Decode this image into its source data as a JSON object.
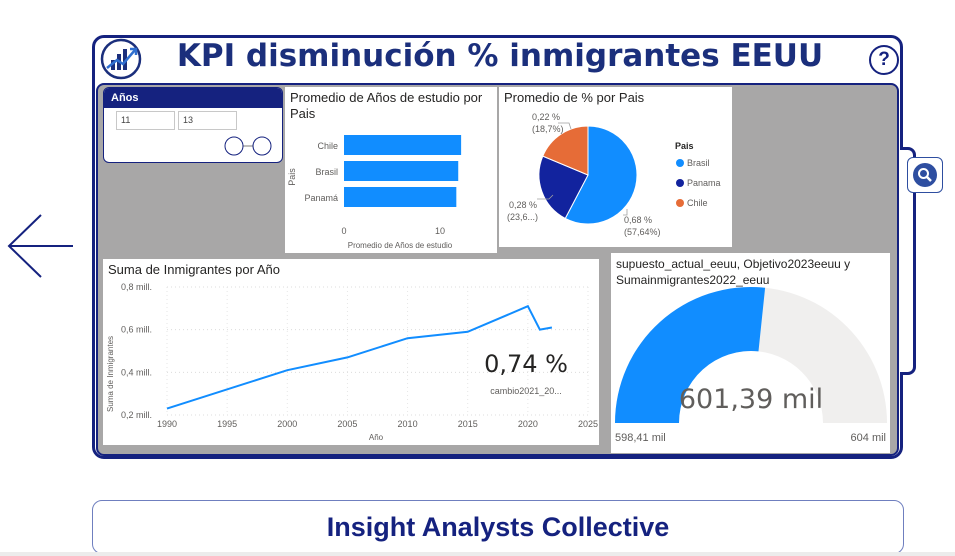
{
  "header": {
    "title": "KPI disminución % inmigrantes EEUU",
    "help_glyph": "?"
  },
  "slicer": {
    "title": "Años",
    "min_value": "11",
    "max_value": "13",
    "range": [
      11,
      13
    ]
  },
  "bar_card": {
    "title_line1": "Promedio de Años de estudio por",
    "title_line2": "Pais",
    "ylabel": "Pais",
    "xlabel": "Promedio de Años de estudio",
    "x_ticks": [
      "0",
      "10"
    ]
  },
  "pie_card": {
    "title": "Promedio de % por Pais",
    "legend_title": "Pais",
    "labels": [
      {
        "line1": "0,22 %",
        "line2": "(18,7%)"
      },
      {
        "line1": "0,28 %",
        "line2": "(23,6...)"
      },
      {
        "line1": "0,68 %",
        "line2": "(57,64%)"
      }
    ]
  },
  "line_card": {
    "title": "Suma de Inmigrantes por Año",
    "ylabel": "Suma de Inmigrantes",
    "xlabel": "Año",
    "y_ticks": [
      "0,2 mill.",
      "0,4 mill.",
      "0,6 mill.",
      "0,8 mill."
    ],
    "x_ticks": [
      "1990",
      "1995",
      "2000",
      "2005",
      "2010",
      "2015",
      "2020",
      "2025"
    ]
  },
  "kpi_card": {
    "value": "0,74 %",
    "label": "cambio2021_20..."
  },
  "gauge_card": {
    "title_line1": "supuesto_actual_eeuu, Objetivo2023eeuu y",
    "title_line2": "Sumainmigrantes2022_eeuu",
    "value": "601,39 mil",
    "min_label": "598,41 mil",
    "max_label": "604 mil"
  },
  "footer": {
    "text": "Insight Analysts Collective"
  },
  "colors": {
    "navy": "#15227f",
    "blue": "#118dff",
    "dark_blue": "#12239e",
    "orange": "#e66c37",
    "gray_bg": "#a8a7a7"
  },
  "icons": {
    "logo": "chart-logo-icon",
    "help": "help-icon",
    "search": "search-icon",
    "back": "arrow-left-icon"
  },
  "chart_data": [
    {
      "type": "bar",
      "title": "Promedio de Años de estudio por Pais",
      "xlabel": "Promedio de Años de estudio",
      "ylabel": "Pais",
      "categories": [
        "Chile",
        "Brasil",
        "Panamá"
      ],
      "values": [
        12.2,
        11.9,
        11.7
      ],
      "xlim": [
        0,
        13
      ]
    },
    {
      "type": "pie",
      "title": "Promedio de % por Pais",
      "legend_title": "Pais",
      "categories": [
        "Brasil",
        "Panama",
        "Chile"
      ],
      "values": [
        0.68,
        0.28,
        0.22
      ],
      "percent": [
        57.64,
        23.6,
        18.7
      ],
      "colors": [
        "#118dff",
        "#12239e",
        "#e66c37"
      ],
      "legend": "right"
    },
    {
      "type": "line",
      "title": "Suma de Inmigrantes por Año",
      "xlabel": "Año",
      "ylabel": "Suma de Inmigrantes",
      "x": [
        1990,
        2000,
        2005,
        2010,
        2015,
        2020,
        2021,
        2022
      ],
      "y": [
        0.23,
        0.41,
        0.47,
        0.56,
        0.59,
        0.71,
        0.6,
        0.61
      ],
      "ylim": [
        0.2,
        0.8
      ],
      "xlim": [
        1990,
        2025
      ]
    },
    {
      "type": "gauge",
      "value": 601.39,
      "min": 598.41,
      "max": 604
    }
  ]
}
